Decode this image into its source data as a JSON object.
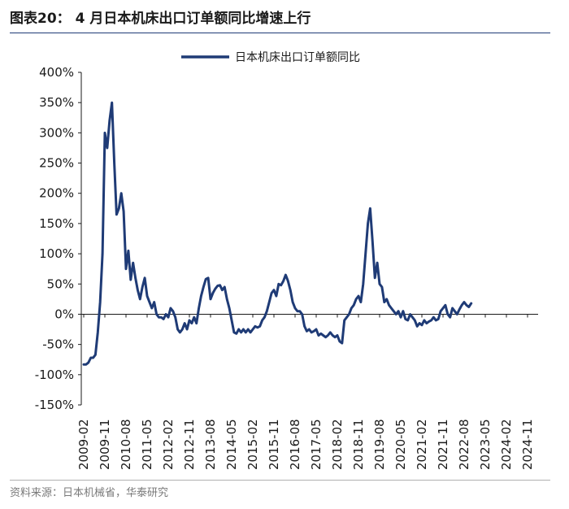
{
  "figure": {
    "title": "图表20：  4 月日本机床出口订单额同比增速上行",
    "source": "资料来源：日本机械省，华泰研究"
  },
  "chart_data": {
    "type": "line",
    "title": "",
    "xlabel": "",
    "ylabel": "",
    "ylim": [
      -150,
      400
    ],
    "y_ticks": [
      "400%",
      "350%",
      "300%",
      "250%",
      "200%",
      "150%",
      "100%",
      "50%",
      "0%",
      "-50%",
      "-100%",
      "-150%"
    ],
    "x_ticks": [
      "2009-02",
      "2009-11",
      "2010-08",
      "2011-05",
      "2012-02",
      "2012-11",
      "2013-08",
      "2014-05",
      "2015-02",
      "2015-11",
      "2016-08",
      "2017-05",
      "2018-02",
      "2018-11",
      "2019-08",
      "2020-05",
      "2021-02",
      "2021-11",
      "2022-08",
      "2023-05",
      "2024-02",
      "2024-11"
    ],
    "legend_position": "top",
    "line_color": "#1f3b76",
    "series": [
      {
        "name": "日本机床出口订单额同比",
        "start": "2009-02",
        "values": [
          -83,
          -83,
          -80,
          -72,
          -72,
          -67,
          -30,
          20,
          100,
          300,
          275,
          320,
          350,
          250,
          165,
          175,
          200,
          170,
          75,
          105,
          57,
          85,
          60,
          40,
          25,
          45,
          60,
          30,
          20,
          10,
          20,
          0,
          -5,
          -5,
          -8,
          0,
          -5,
          10,
          5,
          -5,
          -25,
          -30,
          -25,
          -15,
          -25,
          -10,
          -15,
          -5,
          -15,
          10,
          30,
          45,
          58,
          60,
          25,
          35,
          42,
          47,
          48,
          40,
          45,
          25,
          10,
          -10,
          -30,
          -32,
          -25,
          -30,
          -25,
          -30,
          -25,
          -30,
          -25,
          -20,
          -22,
          -20,
          -10,
          -5,
          5,
          20,
          35,
          40,
          30,
          50,
          48,
          55,
          65,
          55,
          40,
          20,
          10,
          5,
          5,
          0,
          -20,
          -28,
          -25,
          -30,
          -28,
          -25,
          -35,
          -32,
          -35,
          -38,
          -35,
          -30,
          -35,
          -38,
          -35,
          -45,
          -48,
          -10,
          -5,
          0,
          10,
          15,
          25,
          30,
          20,
          50,
          100,
          150,
          175,
          120,
          60,
          85,
          50,
          45,
          20,
          25,
          15,
          10,
          5,
          0,
          5,
          -5,
          5,
          -8,
          -10,
          0,
          -5,
          -10,
          -20,
          -15,
          -18,
          -10,
          -15,
          -12,
          -10,
          -5,
          -10,
          -8,
          5,
          10,
          15,
          0,
          -5,
          10,
          5,
          0,
          8,
          15,
          20,
          15,
          12,
          18
        ]
      }
    ]
  }
}
